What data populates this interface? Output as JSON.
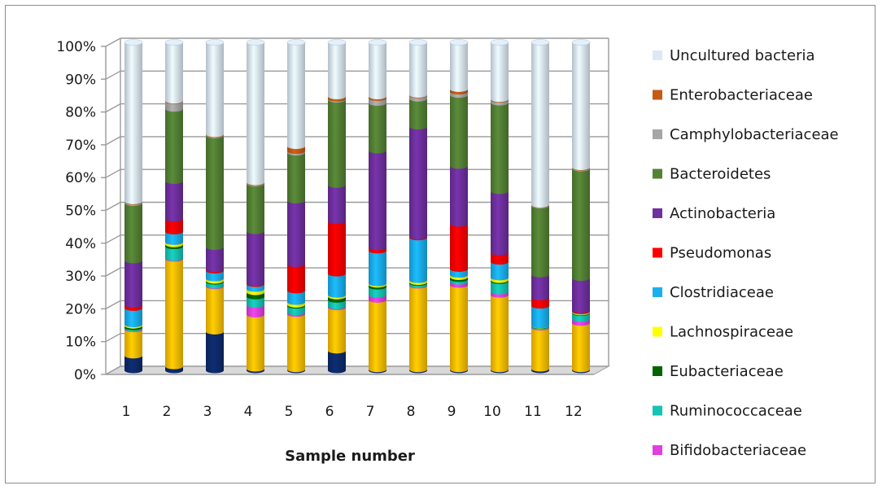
{
  "chart_data": {
    "type": "bar",
    "stacked": true,
    "normalized_percent": true,
    "xlabel": "Sample number",
    "ylabel": "",
    "ylim": [
      0,
      100
    ],
    "y_ticks": [
      "0%",
      "10%",
      "20%",
      "30%",
      "40%",
      "50%",
      "60%",
      "70%",
      "80%",
      "90%",
      "100%"
    ],
    "categories": [
      "1",
      "2",
      "3",
      "4",
      "5",
      "6",
      "7",
      "8",
      "9",
      "10",
      "11",
      "12"
    ],
    "grid": true,
    "legend_position": "right",
    "series": [
      {
        "key": "s0",
        "color": "#0d2a6b",
        "values": [
          4.5,
          1.2,
          11.8,
          0.5,
          0.3,
          6.0,
          0.3,
          0.3,
          0.3,
          0.3,
          0.5,
          0.3
        ]
      },
      {
        "key": "s1",
        "color": "#ffc000",
        "values": [
          8.0,
          32.8,
          13.8,
          16.5,
          16.8,
          13.2,
          21.2,
          25.5,
          25.8,
          22.7,
          12.5,
          14.2
        ]
      },
      {
        "key": "s2",
        "name": "Bifidobacteriaceae",
        "color": "#e040e0",
        "values": [
          0.2,
          0.2,
          0.2,
          3.0,
          0.5,
          0.3,
          1.5,
          0.2,
          1.0,
          1.0,
          0.2,
          1.2
        ]
      },
      {
        "key": "s3",
        "name": "Ruminococcaceae",
        "color": "#14c4b4",
        "values": [
          0.4,
          3.6,
          1.2,
          2.5,
          2.0,
          2.0,
          2.5,
          0.6,
          0.8,
          3.2,
          0.3,
          1.8
        ]
      },
      {
        "key": "s4",
        "name": "Eubacteriaceae",
        "color": "#006400",
        "values": [
          0.5,
          0.6,
          0.3,
          1.3,
          0.3,
          1.0,
          0.6,
          0.3,
          0.6,
          0.3,
          0.1,
          0.2
        ]
      },
      {
        "key": "s5",
        "name": "Lachnospiraceae",
        "color": "#ffff00",
        "values": [
          0.4,
          0.7,
          0.7,
          1.0,
          0.8,
          0.5,
          0.4,
          0.6,
          0.7,
          0.8,
          0.1,
          0.2
        ]
      },
      {
        "key": "s6",
        "name": "Clostridiaceae",
        "color": "#1ab0f0",
        "values": [
          5.0,
          3.2,
          2.4,
          1.5,
          3.5,
          6.5,
          10.0,
          13.0,
          1.8,
          4.8,
          6.0,
          0.2
        ]
      },
      {
        "key": "s7",
        "name": "Pseudomonas",
        "color": "#ff0000",
        "values": [
          1.0,
          3.9,
          0.4,
          0.3,
          8.0,
          16.0,
          1.0,
          0.3,
          13.8,
          2.8,
          2.5,
          0.3
        ]
      },
      {
        "key": "s8",
        "name": "Actinobacteria",
        "color": "#7030a0",
        "values": [
          13.5,
          11.5,
          6.8,
          15.8,
          19.3,
          11.0,
          29.5,
          33.5,
          17.7,
          18.7,
          7.0,
          9.8
        ]
      },
      {
        "key": "s9",
        "name": "Bacteroidetes",
        "color": "#548235",
        "values": [
          17.5,
          22.0,
          34.0,
          14.5,
          14.5,
          26.0,
          14.5,
          8.5,
          21.7,
          27.0,
          21.0,
          33.5
        ]
      },
      {
        "key": "s10",
        "name": "Camphylobacteriaceae",
        "color": "#a6a6a6",
        "values": [
          0.3,
          2.3,
          0.2,
          0.2,
          0.5,
          0.3,
          1.5,
          1.0,
          1.0,
          0.9,
          0.2,
          0.2
        ]
      },
      {
        "key": "s11",
        "name": "Enterobacteriaceae",
        "color": "#c55a11",
        "values": [
          0.2,
          0.2,
          0.2,
          0.2,
          1.5,
          0.7,
          0.5,
          0.2,
          0.8,
          0.2,
          0.1,
          0.2
        ]
      },
      {
        "key": "s12",
        "name": "Uncultured bacteria",
        "color": "#dce9f5",
        "values": [
          48.5,
          17.8,
          28.0,
          42.7,
          31.5,
          16.5,
          16.5,
          16.0,
          14.3,
          17.3,
          49.5,
          38.2
        ]
      }
    ],
    "legend": [
      {
        "key": "s12",
        "label": "Uncultured bacteria"
      },
      {
        "key": "s11",
        "label": "Enterobacteriaceae"
      },
      {
        "key": "s10",
        "label": "Camphylobacteriaceae"
      },
      {
        "key": "s9",
        "label": "Bacteroidetes"
      },
      {
        "key": "s8",
        "label": "Actinobacteria"
      },
      {
        "key": "s7",
        "label": "Pseudomonas"
      },
      {
        "key": "s6",
        "label": "Clostridiaceae"
      },
      {
        "key": "s5",
        "label": "Lachnospiraceae"
      },
      {
        "key": "s4",
        "label": "Eubacteriaceae"
      },
      {
        "key": "s3",
        "label": "Ruminococcaceae"
      },
      {
        "key": "s2",
        "label": "Bifidobacteriaceae"
      }
    ],
    "colors": {
      "grid": "#9a9a9a",
      "wall": "#ffffff",
      "floor": "#d9d9d9",
      "frame_border": "#8c8c8c"
    }
  }
}
